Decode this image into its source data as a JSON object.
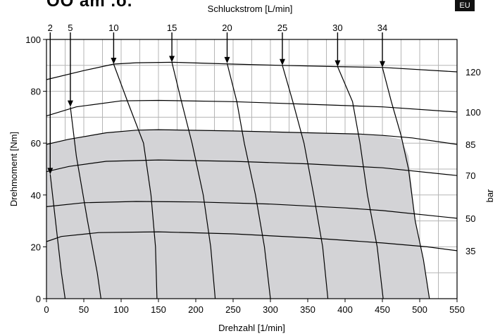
{
  "header": {
    "model_text": "OO am .o.",
    "badge": "EU",
    "top_axis_label": "Schluckstrom [L/min]"
  },
  "chart_data": {
    "type": "line",
    "title": "",
    "xlabel": "Drehzahl [1/min]",
    "ylabel": "Drehmoment [Nm]",
    "right_label": "bar",
    "xlim": [
      0,
      550
    ],
    "ylim": [
      0,
      100
    ],
    "x_ticks": [
      0,
      50,
      100,
      150,
      200,
      250,
      300,
      350,
      400,
      450,
      500,
      550
    ],
    "y_ticks": [
      0,
      20,
      40,
      60,
      80,
      100
    ],
    "grid": true,
    "shaded_region_color": "#d3d3d6",
    "pressure_curves": [
      {
        "label": "120",
        "points": [
          [
            0,
            84.5
          ],
          [
            50,
            88
          ],
          [
            90,
            90.5
          ],
          [
            120,
            91
          ],
          [
            170,
            91.2
          ],
          [
            250,
            90.5
          ],
          [
            315,
            90
          ],
          [
            390,
            89.5
          ],
          [
            450,
            89.2
          ],
          [
            550,
            87.5
          ]
        ]
      },
      {
        "label": "100",
        "points": [
          [
            0,
            70.5
          ],
          [
            40,
            74
          ],
          [
            100,
            76.3
          ],
          [
            150,
            76.5
          ],
          [
            250,
            76
          ],
          [
            350,
            75
          ],
          [
            450,
            74
          ],
          [
            550,
            72
          ]
        ]
      },
      {
        "label": "85",
        "points": [
          [
            0,
            59.5
          ],
          [
            30,
            61.5
          ],
          [
            80,
            64
          ],
          [
            120,
            65
          ],
          [
            150,
            65.2
          ],
          [
            250,
            64.7
          ],
          [
            350,
            64
          ],
          [
            420,
            63.5
          ],
          [
            450,
            63
          ],
          [
            490,
            62
          ],
          [
            550,
            59.5
          ]
        ]
      },
      {
        "label": "70",
        "points": [
          [
            0,
            49
          ],
          [
            30,
            51
          ],
          [
            80,
            53
          ],
          [
            150,
            53.5
          ],
          [
            250,
            53
          ],
          [
            350,
            52
          ],
          [
            450,
            50.5
          ],
          [
            550,
            47.5
          ]
        ]
      },
      {
        "label": "50",
        "points": [
          [
            0,
            35.5
          ],
          [
            50,
            37
          ],
          [
            120,
            37.5
          ],
          [
            200,
            37.3
          ],
          [
            300,
            36.5
          ],
          [
            400,
            35
          ],
          [
            450,
            34
          ],
          [
            550,
            31
          ]
        ]
      },
      {
        "label": "35",
        "points": [
          [
            0,
            22
          ],
          [
            20,
            24
          ],
          [
            70,
            25.5
          ],
          [
            150,
            25.8
          ],
          [
            250,
            25
          ],
          [
            350,
            23.5
          ],
          [
            450,
            21.5
          ],
          [
            510,
            20
          ],
          [
            550,
            18.5
          ]
        ]
      }
    ],
    "flow_curves": [
      {
        "label": "2",
        "x_top": 5,
        "points": [
          [
            5,
            48
          ],
          [
            20,
            10
          ],
          [
            25,
            0
          ]
        ]
      },
      {
        "label": "5",
        "x_top": 32,
        "points": [
          [
            32,
            74
          ],
          [
            40,
            55
          ],
          [
            55,
            30
          ],
          [
            68,
            10
          ],
          [
            73,
            0
          ]
        ]
      },
      {
        "label": "10",
        "x_top": 90,
        "points": [
          [
            90,
            90.5
          ],
          [
            110,
            75
          ],
          [
            130,
            60
          ],
          [
            140,
            40
          ],
          [
            146,
            20
          ],
          [
            148,
            0
          ]
        ]
      },
      {
        "label": "15",
        "x_top": 168,
        "points": [
          [
            168,
            91.2
          ],
          [
            180,
            77
          ],
          [
            195,
            60
          ],
          [
            210,
            40
          ],
          [
            220,
            20
          ],
          [
            226,
            0
          ]
        ]
      },
      {
        "label": "20",
        "x_top": 242,
        "points": [
          [
            242,
            90.8
          ],
          [
            255,
            76
          ],
          [
            265,
            60
          ],
          [
            280,
            40
          ],
          [
            292,
            20
          ],
          [
            300,
            0
          ]
        ]
      },
      {
        "label": "25",
        "x_top": 316,
        "points": [
          [
            316,
            90
          ],
          [
            330,
            76
          ],
          [
            345,
            60
          ],
          [
            358,
            40
          ],
          [
            370,
            20
          ],
          [
            377,
            0
          ]
        ]
      },
      {
        "label": "30",
        "x_top": 390,
        "points": [
          [
            390,
            89.5
          ],
          [
            410,
            76
          ],
          [
            420,
            60
          ],
          [
            430,
            40
          ],
          [
            443,
            20
          ],
          [
            451,
            0
          ]
        ]
      },
      {
        "label": "34",
        "x_top": 450,
        "points": [
          [
            450,
            89.2
          ],
          [
            462,
            76
          ],
          [
            475,
            63
          ],
          [
            485,
            50
          ],
          [
            494,
            30
          ],
          [
            505,
            15
          ],
          [
            513,
            0
          ]
        ]
      }
    ],
    "shaded_region": [
      [
        0,
        0
      ],
      [
        0,
        59.5
      ],
      [
        30,
        61.5
      ],
      [
        80,
        64
      ],
      [
        120,
        65
      ],
      [
        150,
        65.2
      ],
      [
        250,
        64.7
      ],
      [
        350,
        64
      ],
      [
        420,
        63.5
      ],
      [
        450,
        63
      ],
      [
        475,
        61.5
      ],
      [
        485,
        55
      ],
      [
        494,
        30
      ],
      [
        505,
        15
      ],
      [
        513,
        0
      ]
    ]
  }
}
